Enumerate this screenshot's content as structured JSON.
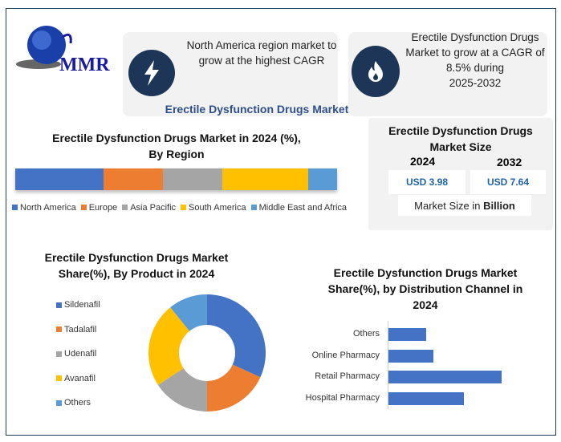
{
  "logo": {
    "text": "MMR"
  },
  "cards": [
    {
      "icon": "lightning-icon",
      "text": "North America region market to grow at the highest CAGR"
    },
    {
      "icon": "flame-icon",
      "text_lines": [
        "Erectile Dysfunction Drugs",
        "Market to grow at a CAGR of",
        "8.5% during",
        "2025-2032"
      ]
    }
  ],
  "main_title": "Erectile Dysfunction Drugs Market",
  "market_size": {
    "title": "Erectile Dysfunction Drugs Market Size",
    "years": [
      "2024",
      "2032"
    ],
    "values": [
      "USD 3.98",
      "USD 7.64"
    ],
    "unit_prefix": "Market Size in ",
    "unit": "Billion"
  },
  "colors": {
    "blue": "#4472c4",
    "orange": "#ed7d31",
    "gray": "#a5a5a5",
    "yellow": "#ffc000",
    "lightblue": "#5b9bd5",
    "navy": "#1d3557",
    "title_blue": "#2f4f8f"
  },
  "chart_data": [
    {
      "type": "bar",
      "orientation": "stacked-horizontal",
      "title": "Erectile Dysfunction Drugs Market in 2024 (%), By Region",
      "categories": [
        "North America",
        "Europe",
        "Asia Pacific",
        "South America",
        "Middle East and Africa"
      ],
      "values": [
        27.4,
        18.5,
        18.5,
        26.7,
        8.9
      ],
      "legend": "bottom"
    },
    {
      "type": "pie",
      "donut": true,
      "title": "Erectile Dysfunction Drugs Market Share(%), By Product in 2024",
      "categories": [
        "Sildenafil",
        "Tadalafil",
        "Udenafil",
        "Avanafil",
        "Others"
      ],
      "values": [
        31.8,
        18.2,
        15.8,
        23.4,
        10.8
      ],
      "legend": "left"
    },
    {
      "type": "bar",
      "orientation": "horizontal",
      "title": "Erectile Dysfunction Drugs Market Share(%), by Distribution Channel in 2024",
      "categories": [
        "Others",
        "Online Pharmacy",
        "Retail Pharmacy",
        "Hospital Pharmacy"
      ],
      "values": [
        11,
        13,
        33,
        22
      ],
      "xlim": [
        0,
        35
      ]
    }
  ]
}
